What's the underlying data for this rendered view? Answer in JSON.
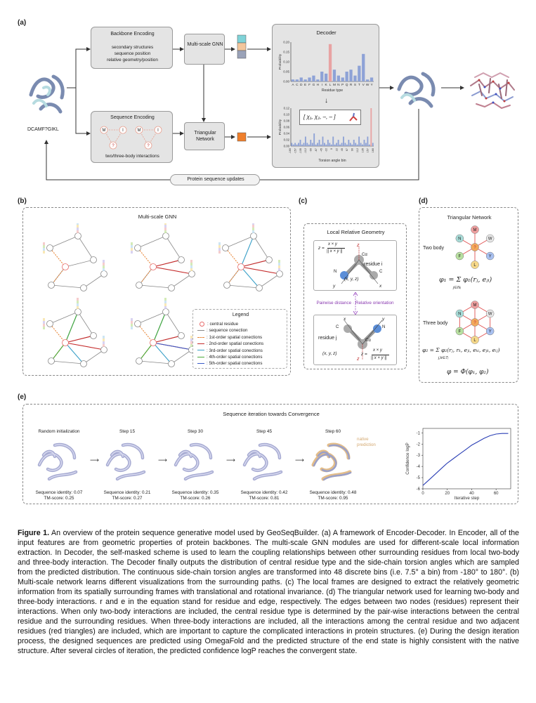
{
  "panel_labels": {
    "a": "(a)",
    "b": "(b)",
    "c": "(c)",
    "d": "(d)",
    "e": "(e)"
  },
  "panel_a": {
    "backbone_title": "Backbone Encoding",
    "backbone_lines": [
      "secondary structures",
      "sequence position",
      "relative geometry/position"
    ],
    "sequence_title": "Sequence Encoding",
    "sequence_sub": "two/three-body interactions",
    "seq_nodes": {
      "m": "M",
      "i": "I",
      "q": "?"
    },
    "gnn": "Multi-scale GNN",
    "tri_net": "Triangular Network",
    "decoder_title": "Decoder",
    "input_seq": "DCAMF?GIKL",
    "updates": "Protein sequence updates",
    "tuple_label": "[ χ₁, χ₂, –, – ]"
  },
  "chart_data": [
    {
      "type": "bar",
      "title": "",
      "xlabel": "Residue type",
      "ylabel": "Probability",
      "categories": [
        "A",
        "C",
        "D",
        "E",
        "F",
        "G",
        "H",
        "I",
        "K",
        "L",
        "M",
        "N",
        "P",
        "Q",
        "R",
        "S",
        "T",
        "V",
        "W",
        "Y"
      ],
      "values": [
        0.01,
        0.01,
        0.02,
        0.01,
        0.02,
        0.03,
        0.01,
        0.05,
        0.04,
        0.19,
        0.06,
        0.03,
        0.02,
        0.05,
        0.06,
        0.03,
        0.08,
        0.14,
        0.01,
        0.02
      ],
      "highlight": "L",
      "highlight_color": "#e8a3a3",
      "bar_color": "#8ea2d6",
      "ylim": [
        0,
        0.2
      ],
      "yticks": [
        "0.00",
        "0.05",
        "0.10",
        "0.15",
        "0.20"
      ]
    },
    {
      "type": "bar",
      "title": "",
      "xlabel": "Torsion angle bin",
      "ylabel": "Probability",
      "n_bins": 48,
      "values": [
        0.01,
        0.005,
        0.01,
        0.005,
        0.01,
        0.02,
        0.005,
        0.01,
        0.03,
        0.01,
        0.005,
        0.02,
        0.01,
        0.04,
        0.005,
        0.01,
        0.02,
        0.005,
        0.03,
        0.01,
        0.005,
        0.02,
        0.01,
        0.005,
        0.03,
        0.005,
        0.01,
        0.02,
        0.005,
        0.01,
        0.03,
        0.01,
        0.005,
        0.02,
        0.01,
        0.005,
        0.02,
        0.01,
        0.005,
        0.03,
        0.01,
        0.005,
        0.02,
        0.01,
        0.03,
        0.005,
        0.12,
        0.01
      ],
      "highlight_index": 46,
      "highlight_color": "#e8a3a3",
      "bar_color": "#8ea2d6",
      "ylim": [
        0,
        0.12
      ],
      "yticks": [
        "0.00",
        "0.02",
        "0.04",
        "0.06",
        "0.08",
        "0.10",
        "0.12"
      ],
      "xticks": [
        "-180",
        "-157",
        "-135",
        "-112",
        "-90",
        "-67",
        "-45",
        "-22",
        "0",
        "22",
        "45",
        "67",
        "90",
        "112",
        "135",
        "157",
        "180"
      ]
    },
    {
      "type": "line",
      "title": "",
      "xlabel": "Iterative step",
      "ylabel": "Confidence logP",
      "x": [
        0,
        5,
        10,
        15,
        20,
        25,
        30,
        35,
        40,
        45,
        50,
        55,
        60,
        65,
        70
      ],
      "y": [
        -5.7,
        -5.2,
        -4.7,
        -4.2,
        -3.7,
        -3.3,
        -2.9,
        -2.5,
        -2.1,
        -1.8,
        -1.5,
        -1.25,
        -1.1,
        -1.05,
        -1.05
      ],
      "xlim": [
        0,
        72
      ],
      "ylim": [
        -6,
        -0.6
      ],
      "xticks": [
        "0",
        "20",
        "40",
        "60"
      ],
      "yticks": [
        "-1",
        "-2",
        "-3",
        "-4",
        "-5",
        "-6"
      ],
      "line_color": "#2b3fb5"
    }
  ],
  "panel_b": {
    "title": "Multi-scale GNN",
    "legend_title": "Legend",
    "legend": [
      {
        "text": ": central residue",
        "color": "#e86b6b"
      },
      {
        "text": ": sequence conection",
        "color": "#888888"
      },
      {
        "text": ": 1st-order spatial conections",
        "color": "#e8873a"
      },
      {
        "text": ": 2nd-order spatial conections",
        "color": "#c42a2a"
      },
      {
        "text": ": 3rd-order spatial conections",
        "color": "#3aa0c8"
      },
      {
        "text": ": 4th-order spatial conections",
        "color": "#4caa3a"
      },
      {
        "text": ": 5th-order spatial conections",
        "color": "#3a5ac8"
      }
    ]
  },
  "panel_c": {
    "title": "Local Relative Geometry",
    "residue_i": "residue i",
    "residue_j": "residue j",
    "pairwise": "Pairwise distance · Relative orientation",
    "z_formula": "z =",
    "num": "x × y",
    "den": "|| x × y ||",
    "coord": "(x, y, z)",
    "atom_n": "N",
    "atom_c": "C",
    "atom_ca": "Cα",
    "ax_x": "x",
    "ax_y": "y",
    "ax_z": "z"
  },
  "panel_d": {
    "title": "Triangular Network",
    "two_body": "Two body",
    "three_body": "Three body",
    "nodes": [
      "M",
      "W",
      "Y",
      "L",
      "F",
      "N",
      "?"
    ],
    "eq1": "φ₁ = Σ φ₁(rⱼ, eⱼᵢ)",
    "eq1_sub": "j∈Nᵢ",
    "eq2": "φ₂ = Σ φ₂(rⱼ, rₖ, eⱼᵢ, eₖᵢ, eⱼₖ, eᵢⱼ)",
    "eq2_sub": "j,k∈Tᵢ",
    "eq3": "φ = Φ(φ₁, φ₂)"
  },
  "panel_e": {
    "title": "Sequence iteration towards Convergence",
    "steps": [
      {
        "label": "Random initialization",
        "identity": "Sequence identity: 0.07",
        "tm": "TM-score:  0.25"
      },
      {
        "label": "Step 15",
        "identity": "Sequence identity: 0.21",
        "tm": "TM-score:  0.27"
      },
      {
        "label": "Step 30",
        "identity": "Sequence identity: 0.35",
        "tm": "TM-score:  0.26"
      },
      {
        "label": "Step 45",
        "identity": "Sequence identity: 0.42",
        "tm": "TM-score:  0.81"
      },
      {
        "label": "Step 60",
        "identity": "Sequence identity: 0.48",
        "tm": "TM-score:  0.95"
      }
    ],
    "native": "native",
    "prediction": "prediction"
  },
  "caption": {
    "label": "Figure 1.",
    "text": " An overview of the protein sequence generative model used by GeoSeqBuilder. (a) A framework of Encoder-Decoder. In Encoder, all of the input features are from geometric properties of protein backbones. The multi-scale GNN modules are used for different-scale local information extraction. In Decoder, the self-masked scheme is used to learn the coupling relationships between other surrounding residues from local two-body and three-body interaction. The Decoder finally outputs the distribution of central residue type and the side-chain torsion angles which are sampled from the predicted distribution. The continuous side-chain torsion angles are transformed into 48 discrete bins (i.e. 7.5° a bin) from -180° to 180°. (b) Multi-scale network learns different visualizations from the surrounding paths. (c) The local frames are designed to extract the relatively geometric information from its spatially surrounding frames with translational and rotational invariance. (d) The triangular network used for learning two-body and three-body interactions. r and e in the equation stand for residue and edge, respectively. The edges between two nodes (residues) represent their interactions. When only two-body interactions are included, the central residue type is determined by the pair-wise interactions between the central residue and the surrounding residues. When three-body interactions are included, all the interactions among the central residue and two adjacent residues (red triangles) are included, which are important to capture the complicated interactions in protein structures. (e) During the design iteration process, the designed sequences are predicted using OmegaFold and the predicted structure of the end state is highly consistent with the native structure. After several circles of iteration, the predicted confidence logP reaches the convergent state."
  }
}
